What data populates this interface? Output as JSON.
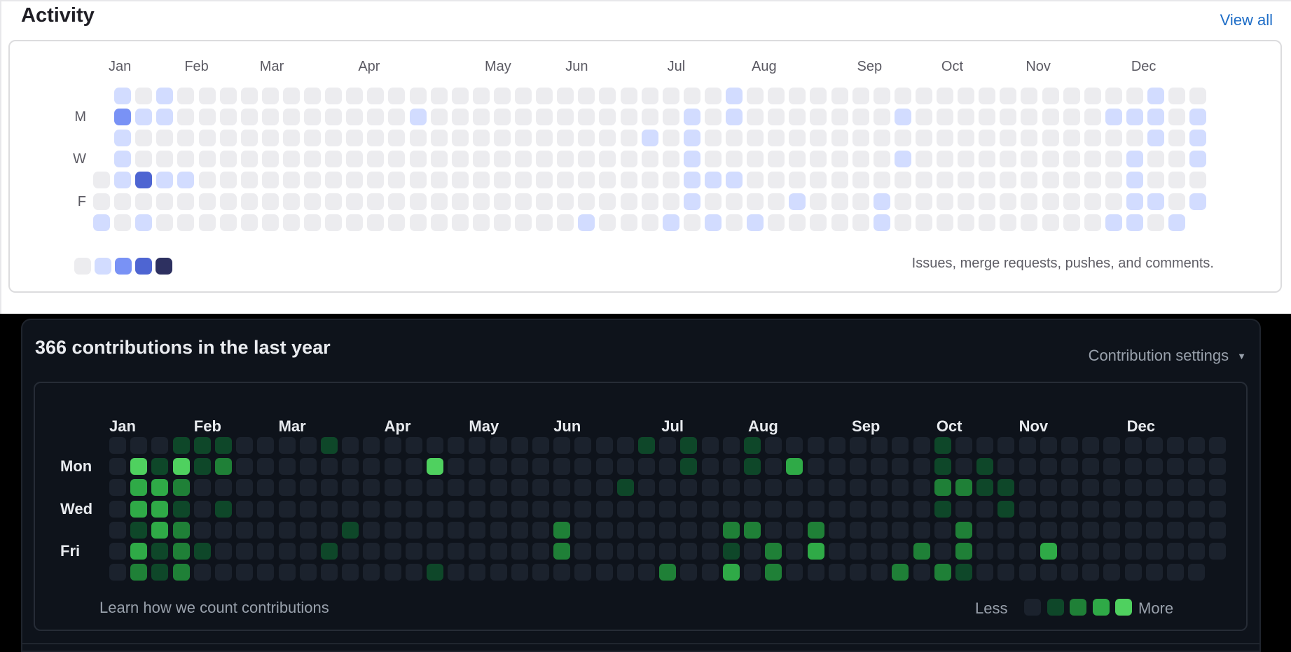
{
  "activity_card": {
    "title": "Activity",
    "view_all_label": "View all",
    "footnote": "Issues, merge requests, pushes, and comments.",
    "day_labels": [
      "M",
      "W",
      "F"
    ],
    "month_labels": [
      "Jan",
      "Feb",
      "Mar",
      "Apr",
      "May",
      "Jun",
      "Jul",
      "Aug",
      "Sep",
      "Oct",
      "Nov",
      "Dec"
    ],
    "palette": [
      "#ececef",
      "#d2dcff",
      "#7992f5",
      "#4e65d2",
      "#2d3060"
    ],
    "chart_data": {
      "type": "heatmap",
      "rows": [
        "Sun",
        "Mon",
        "Tue",
        "Wed",
        "Thu",
        "Fri",
        "Sat"
      ],
      "weeks": 53,
      "month_weeks": [
        0.73,
        4.33,
        7.9,
        12.57,
        18.57,
        22.4,
        27.23,
        31.23,
        36.23,
        40.23,
        44.23,
        49.23
      ],
      "missing_cells": [
        [
          0,
          0
        ],
        [
          0,
          1
        ],
        [
          0,
          2
        ],
        [
          0,
          3
        ],
        [
          52,
          6
        ]
      ],
      "cells": [
        [
          0,
          6,
          1
        ],
        [
          1,
          0,
          1
        ],
        [
          1,
          1,
          2
        ],
        [
          1,
          2,
          1
        ],
        [
          1,
          3,
          1
        ],
        [
          1,
          4,
          1
        ],
        [
          2,
          1,
          1
        ],
        [
          2,
          4,
          3
        ],
        [
          2,
          6,
          1
        ],
        [
          3,
          0,
          1
        ],
        [
          3,
          1,
          1
        ],
        [
          3,
          4,
          1
        ],
        [
          4,
          4,
          1
        ],
        [
          15,
          1,
          1
        ],
        [
          23,
          6,
          1
        ],
        [
          26,
          2,
          1
        ],
        [
          27,
          6,
          1
        ],
        [
          28,
          1,
          1
        ],
        [
          28,
          2,
          1
        ],
        [
          28,
          3,
          1
        ],
        [
          28,
          4,
          1
        ],
        [
          28,
          5,
          1
        ],
        [
          29,
          4,
          1
        ],
        [
          29,
          6,
          1
        ],
        [
          30,
          0,
          1
        ],
        [
          30,
          1,
          1
        ],
        [
          30,
          4,
          1
        ],
        [
          31,
          6,
          1
        ],
        [
          33,
          5,
          1
        ],
        [
          37,
          5,
          1
        ],
        [
          37,
          6,
          1
        ],
        [
          38,
          1,
          1
        ],
        [
          38,
          3,
          1
        ],
        [
          48,
          1,
          1
        ],
        [
          48,
          6,
          1
        ],
        [
          49,
          1,
          1
        ],
        [
          49,
          3,
          1
        ],
        [
          49,
          4,
          1
        ],
        [
          49,
          5,
          1
        ],
        [
          49,
          6,
          1
        ],
        [
          50,
          0,
          1
        ],
        [
          50,
          1,
          1
        ],
        [
          50,
          2,
          1
        ],
        [
          50,
          5,
          1
        ],
        [
          51,
          6,
          1
        ],
        [
          52,
          1,
          1
        ],
        [
          52,
          2,
          1
        ],
        [
          52,
          3,
          1
        ],
        [
          52,
          5,
          1
        ]
      ]
    }
  },
  "contributions_card": {
    "title": "366 contributions in the last year",
    "settings_label": "Contribution settings",
    "learn_label": "Learn how we count contributions",
    "less_label": "Less",
    "more_label": "More",
    "day_labels": [
      "Mon",
      "Wed",
      "Fri"
    ],
    "month_labels": [
      "Jan",
      "Feb",
      "Mar",
      "Apr",
      "May",
      "Jun",
      "Jul",
      "Aug",
      "Sep",
      "Oct",
      "Nov",
      "Dec"
    ],
    "palette": [
      "#1b222d",
      "#0e4729",
      "#1f8037",
      "#2faa47",
      "#4fd15f"
    ],
    "chart_data": {
      "type": "heatmap",
      "rows": [
        "Sun",
        "Mon",
        "Tue",
        "Wed",
        "Thu",
        "Fri",
        "Sat"
      ],
      "weeks": 53,
      "month_weeks": [
        0,
        4,
        8,
        13,
        17,
        21,
        26.1,
        30.2,
        35.1,
        39.1,
        43,
        48.1
      ],
      "missing_cells": [
        [
          52,
          6
        ]
      ],
      "cells": [
        [
          1,
          1,
          4
        ],
        [
          1,
          2,
          3
        ],
        [
          1,
          3,
          3
        ],
        [
          1,
          4,
          1
        ],
        [
          1,
          5,
          3
        ],
        [
          1,
          6,
          2
        ],
        [
          2,
          1,
          1
        ],
        [
          2,
          2,
          3
        ],
        [
          2,
          3,
          3
        ],
        [
          2,
          4,
          3
        ],
        [
          2,
          5,
          1
        ],
        [
          2,
          6,
          1
        ],
        [
          3,
          0,
          1
        ],
        [
          3,
          1,
          4
        ],
        [
          3,
          2,
          2
        ],
        [
          3,
          3,
          1
        ],
        [
          3,
          4,
          2
        ],
        [
          3,
          5,
          2
        ],
        [
          3,
          6,
          2
        ],
        [
          4,
          0,
          1
        ],
        [
          4,
          1,
          1
        ],
        [
          4,
          5,
          1
        ],
        [
          5,
          0,
          1
        ],
        [
          5,
          1,
          2
        ],
        [
          5,
          3,
          1
        ],
        [
          10,
          0,
          1
        ],
        [
          10,
          5,
          1
        ],
        [
          11,
          4,
          1
        ],
        [
          15,
          1,
          4
        ],
        [
          15,
          6,
          1
        ],
        [
          21,
          4,
          2
        ],
        [
          21,
          5,
          2
        ],
        [
          24,
          2,
          1
        ],
        [
          25,
          0,
          1
        ],
        [
          26,
          6,
          2
        ],
        [
          27,
          0,
          1
        ],
        [
          27,
          1,
          1
        ],
        [
          29,
          4,
          2
        ],
        [
          29,
          5,
          1
        ],
        [
          29,
          6,
          3
        ],
        [
          30,
          0,
          1
        ],
        [
          30,
          1,
          1
        ],
        [
          30,
          4,
          2
        ],
        [
          31,
          5,
          2
        ],
        [
          31,
          6,
          2
        ],
        [
          32,
          1,
          3
        ],
        [
          33,
          4,
          2
        ],
        [
          33,
          5,
          3
        ],
        [
          37,
          6,
          2
        ],
        [
          38,
          5,
          2
        ],
        [
          39,
          0,
          1
        ],
        [
          39,
          1,
          1
        ],
        [
          39,
          2,
          2
        ],
        [
          39,
          3,
          1
        ],
        [
          39,
          6,
          2
        ],
        [
          40,
          2,
          2
        ],
        [
          40,
          4,
          2
        ],
        [
          40,
          5,
          2
        ],
        [
          40,
          6,
          1
        ],
        [
          41,
          1,
          1
        ],
        [
          41,
          2,
          1
        ],
        [
          42,
          2,
          1
        ],
        [
          42,
          3,
          1
        ],
        [
          44,
          5,
          3
        ]
      ]
    }
  }
}
